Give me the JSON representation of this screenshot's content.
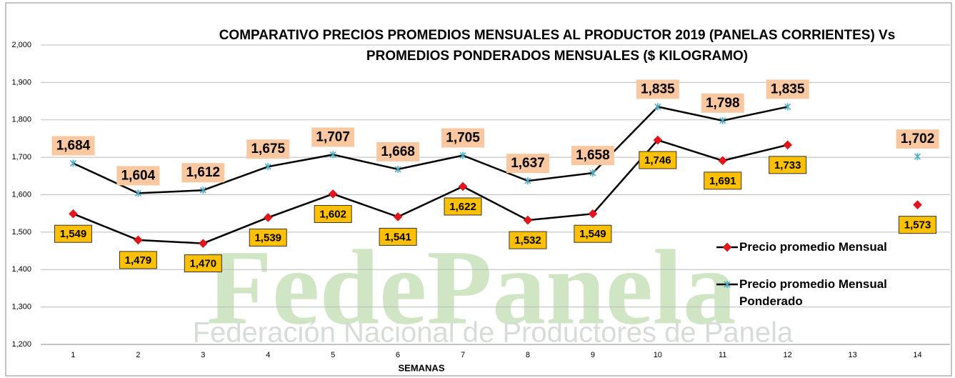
{
  "chart_data": {
    "type": "line",
    "title": [
      "COMPARATIVO PRECIOS PROMEDIOS  MENSUALES AL PRODUCTOR 2019 (PANELAS CORRIENTES) Vs",
      "PROMEDIOS PONDERADOS MENSUALES  ($ KILOGRAMO)"
    ],
    "xlabel": "SEMANAS",
    "watermark": [
      "FedePanela",
      "Federación Nacional de Productores de Panela"
    ],
    "categories": [
      "1",
      "2",
      "3",
      "4",
      "5",
      "6",
      "7",
      "8",
      "9",
      "10",
      "11",
      "12",
      "13",
      "14"
    ],
    "series": [
      {
        "name": "Precio promedio Mensual",
        "color": "#000000",
        "marker_color": "#e8141c",
        "values": [
          1549,
          1479,
          1470,
          1539,
          1602,
          1541,
          1622,
          1532,
          1549,
          1746,
          1691,
          1733,
          null,
          1573
        ],
        "value_labels": [
          "1,549",
          "1,479",
          "1,470",
          "1,539",
          "1,602",
          "1,541",
          "1,622",
          "1,532",
          "1,549",
          "1,746",
          "1,691",
          "1,733",
          null,
          "1,573"
        ]
      },
      {
        "name": "Precio promedio Mensual Ponderado",
        "color": "#000000",
        "marker_color": "#4bacc6",
        "values": [
          1684,
          1604,
          1612,
          1675,
          1707,
          1668,
          1705,
          1637,
          1658,
          1835,
          1798,
          1835,
          null,
          1702
        ],
        "value_labels": [
          "1,684",
          "1,604",
          "1,612",
          "1,675",
          "1,707",
          "1,668",
          "1,705",
          "1,637",
          "1,658",
          "1,835",
          "1,798",
          "1,835",
          null,
          "1,702"
        ]
      }
    ],
    "ylim": [
      1200,
      2000
    ],
    "yticks": [
      {
        "value": 1200,
        "label": "1,200"
      },
      {
        "value": 1300,
        "label": "1,300"
      },
      {
        "value": 1400,
        "label": "1,400"
      },
      {
        "value": 1500,
        "label": "1,500"
      },
      {
        "value": 1600,
        "label": "1,600"
      },
      {
        "value": 1700,
        "label": "1,700"
      },
      {
        "value": 1800,
        "label": "1,800"
      },
      {
        "value": 1900,
        "label": "1,900"
      },
      {
        "value": 2000,
        "label": "2,000"
      }
    ],
    "grid": true,
    "legend": "right"
  }
}
